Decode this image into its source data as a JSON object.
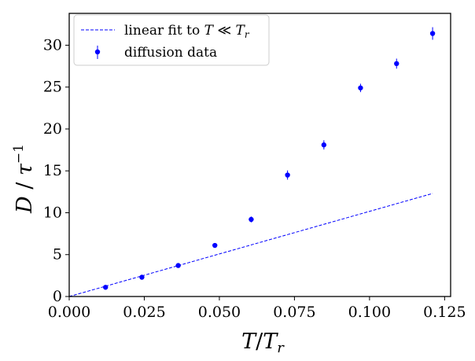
{
  "chart_data": {
    "type": "scatter",
    "title": "",
    "xlabel": "T / T_r",
    "ylabel": "D / τ^-1",
    "xlim": [
      0.0,
      0.127
    ],
    "ylim": [
      0,
      33.8
    ],
    "xticks": [
      0.0,
      0.025,
      0.05,
      0.075,
      0.1,
      0.125
    ],
    "xtick_labels": [
      "0.000",
      "0.025",
      "0.050",
      "0.075",
      "0.100",
      "0.125"
    ],
    "yticks": [
      0,
      5,
      10,
      15,
      20,
      25,
      30
    ],
    "ytick_labels": [
      "0",
      "5",
      "10",
      "15",
      "20",
      "25",
      "30"
    ],
    "grid": false,
    "legend_position": "top-left",
    "series": [
      {
        "name": "linear fit to T ≪ T_r",
        "kind": "line",
        "style": "dashed",
        "color": "#0000ff",
        "x": [
          0.0,
          0.121
        ],
        "y": [
          0.0,
          12.3
        ]
      },
      {
        "name": "diffusion data",
        "kind": "errorbar",
        "color": "#0000ff",
        "x": [
          0.0121,
          0.0242,
          0.0363,
          0.0485,
          0.0606,
          0.0727,
          0.0848,
          0.097,
          0.109,
          0.121
        ],
        "y": [
          1.1,
          2.3,
          3.7,
          6.1,
          9.2,
          14.5,
          18.1,
          24.9,
          27.8,
          31.4
        ],
        "yerr": [
          0.15,
          0.15,
          0.2,
          0.2,
          0.35,
          0.55,
          0.55,
          0.5,
          0.6,
          0.75
        ]
      }
    ]
  },
  "labels": {
    "y_main": "D",
    "y_sep": " / ",
    "y_tau": "τ",
    "y_exp": "−1",
    "x_main": "T",
    "x_sep": "/",
    "x_base": "T",
    "x_sub": "r",
    "legend_fit_prefix": "linear fit to ",
    "legend_fit_T": "T",
    "legend_fit_rel": " ≪ ",
    "legend_fit_Tr": "T",
    "legend_fit_sub": "r",
    "legend_data": "diffusion data"
  }
}
